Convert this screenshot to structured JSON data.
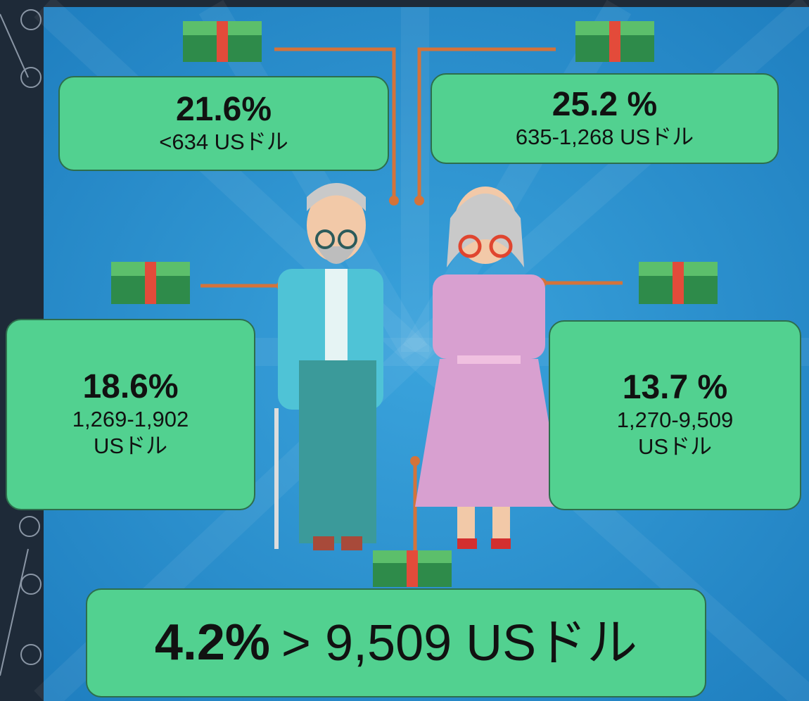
{
  "boxes": [
    {
      "percent": "21.6%",
      "range": [
        "<634 USドル"
      ]
    },
    {
      "percent": "25.2 %",
      "range": [
        "635-1,268 USドル"
      ]
    },
    {
      "percent": "18.6%",
      "range": [
        "1,269-1,902",
        "USドル"
      ]
    },
    {
      "percent": "13.7 %",
      "range": [
        "1,270-9,509",
        "USドル"
      ]
    },
    {
      "percent": "4.2%",
      "range": [
        "> 9,509 USドル"
      ]
    }
  ]
}
